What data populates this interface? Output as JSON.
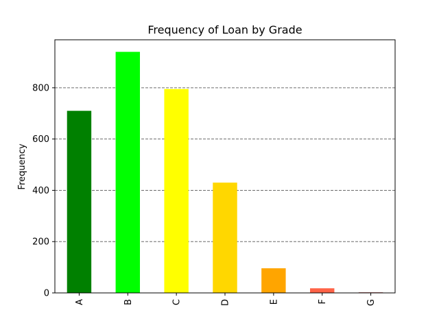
{
  "chart_data": {
    "type": "bar",
    "title": "Frequency of Loan by Grade",
    "xlabel": "",
    "ylabel": "Frequency",
    "categories": [
      "A",
      "B",
      "C",
      "D",
      "E",
      "F",
      "G"
    ],
    "values": [
      710,
      940,
      795,
      430,
      96,
      18,
      2
    ],
    "colors": [
      "#008000",
      "#00ff00",
      "#ffff00",
      "#ffd700",
      "#ffa500",
      "#ff6347",
      "#8b0000"
    ],
    "yticks": [
      0,
      200,
      400,
      600,
      800
    ],
    "ylim": [
      0,
      987
    ],
    "grid": "horizontal-dashed",
    "legend": "none"
  }
}
